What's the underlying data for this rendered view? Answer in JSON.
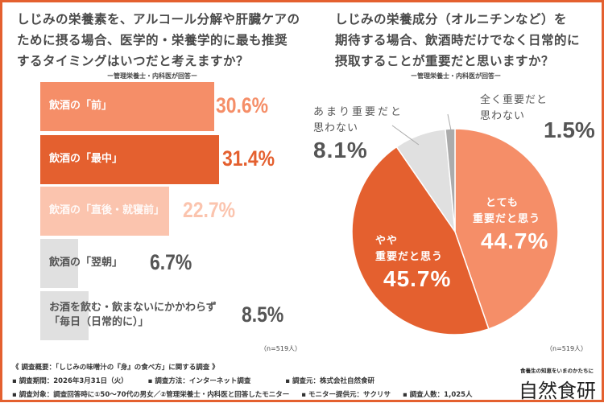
{
  "colors": {
    "frame": "#E4602F",
    "light_orange": "#F58E68",
    "dark_orange": "#E4602F",
    "pale_orange": "#FBC4AE",
    "light_gray": "#E0E0E0",
    "gray": "#ABABAB",
    "text_gray": "#555555"
  },
  "chart_data": [
    {
      "type": "bar",
      "orientation": "horizontal",
      "title": "しじみの栄養素を、アルコール分解や肝臓ケアのために摂る場合、医学的・栄養学的に最も推奨するタイミングはいつだと考えますか？",
      "subtitle": "ー管理栄養士・内科医が回答ー",
      "categories": [
        "飲酒の「前」",
        "飲酒の「最中」",
        "飲酒の「直後・就寝前」",
        "飲酒の「翌朝」",
        "お酒を飲む・飲まないにかかわらず「毎日（日常的に）」"
      ],
      "category_lines": [
        [
          "飲酒の「前」"
        ],
        [
          "飲酒の「最中」"
        ],
        [
          "飲酒の「直後・就寝前」"
        ],
        [
          "飲酒の「翌朝」"
        ],
        [
          "お酒を飲む・飲まないにかかわらず",
          "「毎日（日常的に）」"
        ]
      ],
      "values": [
        30.6,
        31.4,
        22.7,
        6.7,
        8.5
      ],
      "value_labels": [
        "30.6%",
        "31.4%",
        "22.7%",
        "6.7%",
        "8.5%"
      ],
      "bar_colors": [
        "#F58E68",
        "#E4602F",
        "#FBC4AE",
        "#E0E0E0",
        "#E0E0E0"
      ],
      "label_colors": [
        "#F58E68",
        "#E4602F",
        "#FBC4AE",
        "#555555",
        "#555555"
      ],
      "note": "（n=519人）"
    },
    {
      "type": "pie",
      "title": "しじみの栄養成分（オルニチンなど）を期待する場合、飲酒時だけでなく日常的に摂取することが重要だと思いますか？",
      "subtitle": "ー管理栄養士・内科医が回答ー",
      "categories": [
        "とても重要だと思う",
        "やや重要だと思う",
        "あまり重要だと思わない",
        "全く重要だと思わない"
      ],
      "values": [
        44.7,
        45.7,
        8.1,
        1.5
      ],
      "value_labels": [
        "44.7%",
        "45.7%",
        "8.1%",
        "1.5%"
      ],
      "slice_colors": [
        "#F58E68",
        "#E4602F",
        "#E0E0E0",
        "#ABABAB"
      ],
      "start": "12 o'clock, clockwise",
      "note": "（n=519人）"
    }
  ],
  "title_lines": {
    "left": [
      "しじみの栄養素を、アルコール分解や肝臓ケアの",
      "ために摂る場合、医学的・栄養学的に最も推奨",
      "するタイミングはいつだと考えますか？"
    ],
    "right": [
      "しじみの栄養成分（オルニチンなど）を",
      "期待する場合、飲酒時だけでなく日常的に",
      "摂取することが重要だと思いますか？"
    ]
  },
  "pie_labels": {
    "s0": [
      "とても",
      "重要だと思う"
    ],
    "s1": [
      "やや",
      "重要だと思う"
    ],
    "s2": [
      "あまり重要だと",
      "思わない"
    ],
    "s3": [
      "全く重要だと",
      "思わない"
    ]
  },
  "footer": {
    "heading": "《 調査概要：「しじみの味噌汁の『身』の食べ方」に関する調査 》",
    "items_row1": [
      "▪ 調査期間：2026年3月31日（火）",
      "▪ 調査方法：インターネット調査",
      "▪ 調査元：株式会社自然食研"
    ],
    "items_row2": [
      "▪ 調査対象：調査回答時に①50～70代の男女／②管理栄養士・内科医と回答したモニター",
      "▪ モニター提供元：サクリサ",
      "▪ 調査人数：1,025人"
    ],
    "tagline": "食養生の知恵をいまのかたちに",
    "logo": "自然食研"
  }
}
